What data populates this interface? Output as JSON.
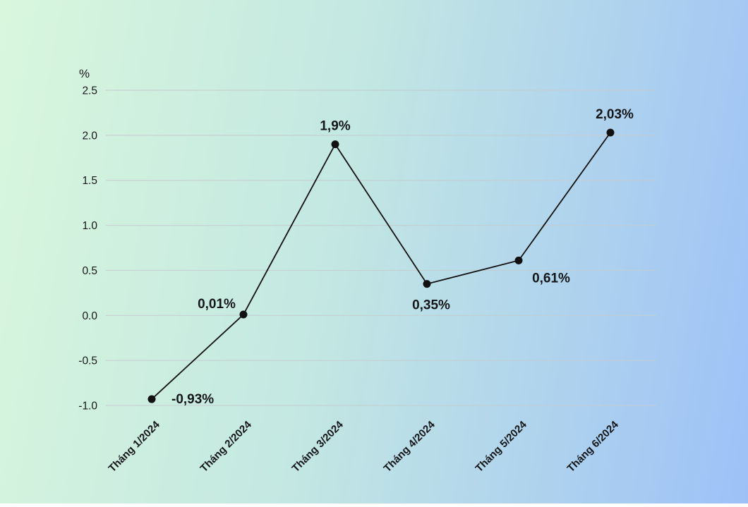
{
  "background": {
    "gradient_start": "#d9f7dd",
    "gradient_mid": "#c3e7e2",
    "gradient_end": "#9dc1f7"
  },
  "chart_data": {
    "type": "line",
    "title": "",
    "xlabel": "",
    "ylabel": "%",
    "categories": [
      "Tháng 1/2024",
      "Tháng 2/2024",
      "Tháng 3/2024",
      "Tháng 4/2024",
      "Tháng 5/2024",
      "Tháng 6/2024"
    ],
    "values": [
      -0.93,
      0.01,
      1.9,
      0.35,
      0.61,
      2.03
    ],
    "point_labels": [
      "-0,93%",
      "0,01%",
      "1,9%",
      "0,35%",
      "0,61%",
      "2,03%"
    ],
    "yticks": [
      2.5,
      2.0,
      1.5,
      1.0,
      0.5,
      0.0,
      -0.5,
      -1.0
    ],
    "ytick_labels": [
      "2.5",
      "2.0",
      "1.5",
      "1.0",
      "0.5",
      "0.0",
      "-0.5",
      "-1.0"
    ],
    "ylim": [
      -1.0,
      2.5
    ],
    "grid": true,
    "legend": "none",
    "line_color": "#111111",
    "marker_color": "#111111",
    "grid_color": "#c6cbd0",
    "text_color": "#15161a",
    "label_offsets": [
      [
        28,
        6,
        "start"
      ],
      [
        -38,
        -9,
        "middle"
      ],
      [
        0,
        -20,
        "middle"
      ],
      [
        6,
        36,
        "middle"
      ],
      [
        46,
        31,
        "middle"
      ],
      [
        6,
        -20,
        "middle"
      ]
    ]
  }
}
